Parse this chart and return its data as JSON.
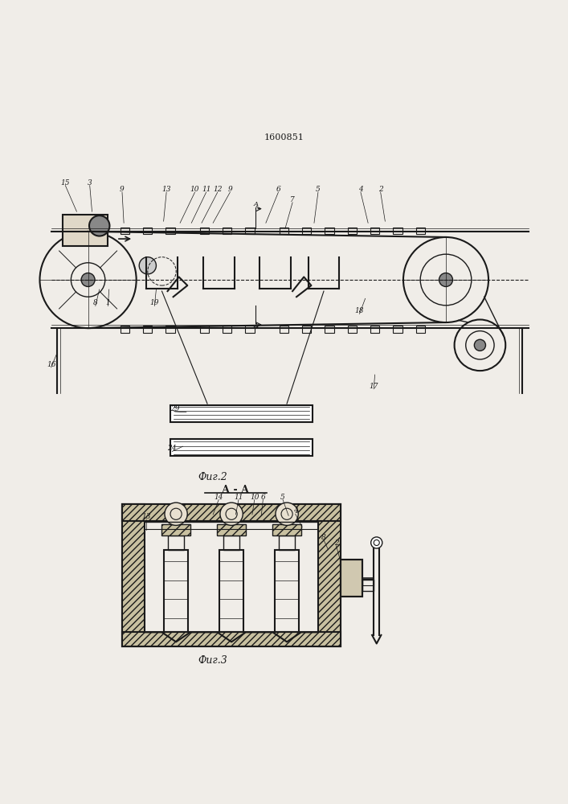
{
  "patent_number": "1600851",
  "fig2_label": "Фиг.2",
  "fig3_label": "Фиг.3",
  "section_label": "А - А",
  "background_color": "#f0ede8",
  "line_color": "#1a1a1a"
}
